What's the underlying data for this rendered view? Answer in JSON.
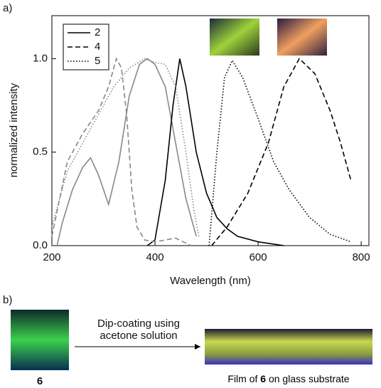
{
  "chart_data": {
    "type": "line",
    "panel_label": "a)",
    "xlabel": "Wavelength (nm)",
    "ylabel": "normalized intensity",
    "xlim": [
      200,
      815
    ],
    "ylim": [
      0,
      1.23
    ],
    "xticks": [
      200,
      400,
      600,
      800
    ],
    "yticks": [
      {
        "value": 0,
        "label": "0.0"
      },
      0.5,
      {
        "value": 1,
        "label": "1.0"
      }
    ],
    "legend": "upper left",
    "series": [
      {
        "name": "2",
        "dash": "solid",
        "curves": [
          {
            "color": "#888888",
            "x": [
              210,
              220,
              240,
              260,
              275,
              290,
              310,
              330,
              350,
              370,
              385,
              400,
              420,
              440,
              460,
              480
            ],
            "values": [
              0,
              0.12,
              0.3,
              0.42,
              0.47,
              0.38,
              0.22,
              0.45,
              0.8,
              0.97,
              1.0,
              0.97,
              0.85,
              0.55,
              0.25,
              0.05
            ]
          },
          {
            "color": "#000000",
            "x": [
              385,
              400,
              420,
              435,
              448,
              460,
              480,
              500,
              520,
              540,
              560,
              600,
              650
            ],
            "values": [
              0,
              0.03,
              0.35,
              0.75,
              1.0,
              0.85,
              0.5,
              0.28,
              0.15,
              0.09,
              0.05,
              0.02,
              0
            ]
          }
        ]
      },
      {
        "name": "4",
        "dash": "dashed",
        "curves": [
          {
            "color": "#888888",
            "x": [
              200,
              230,
              260,
              290,
              310,
              325,
              335,
              345,
              355,
              365,
              380,
              400,
              440,
              470
            ],
            "values": [
              0.05,
              0.45,
              0.6,
              0.72,
              0.85,
              1.0,
              0.95,
              0.7,
              0.3,
              0.1,
              0.03,
              0.02,
              0.04,
              0
            ]
          },
          {
            "color": "#000000",
            "x": [
              510,
              540,
              580,
              620,
              650,
              680,
              710,
              740,
              760,
              780
            ],
            "values": [
              0,
              0.1,
              0.28,
              0.55,
              0.85,
              1.0,
              0.92,
              0.72,
              0.55,
              0.35
            ]
          }
        ]
      },
      {
        "name": "5",
        "dash": "dotted",
        "curves": [
          {
            "color": "#888888",
            "x": [
              200,
              230,
              260,
              290,
              320,
              350,
              380,
              400,
              420,
              440,
              460,
              475,
              485
            ],
            "values": [
              0.1,
              0.4,
              0.55,
              0.7,
              0.85,
              0.95,
              1.0,
              0.98,
              0.97,
              0.85,
              0.5,
              0.2,
              0.05
            ]
          },
          {
            "color": "#000000",
            "x": [
              505,
              520,
              535,
              550,
              570,
              600,
              630,
              660,
              700,
              740,
              780
            ],
            "values": [
              0,
              0.5,
              0.9,
              0.99,
              0.9,
              0.68,
              0.45,
              0.3,
              0.15,
              0.06,
              0.02
            ]
          }
        ]
      }
    ]
  },
  "panel_b": {
    "label": "b)",
    "compound": "6",
    "arrow_text": [
      "Dip-coating using",
      "acetone solution"
    ],
    "caption": {
      "before": "Film of",
      "compound": "6",
      "after": "on glass substrate"
    }
  }
}
